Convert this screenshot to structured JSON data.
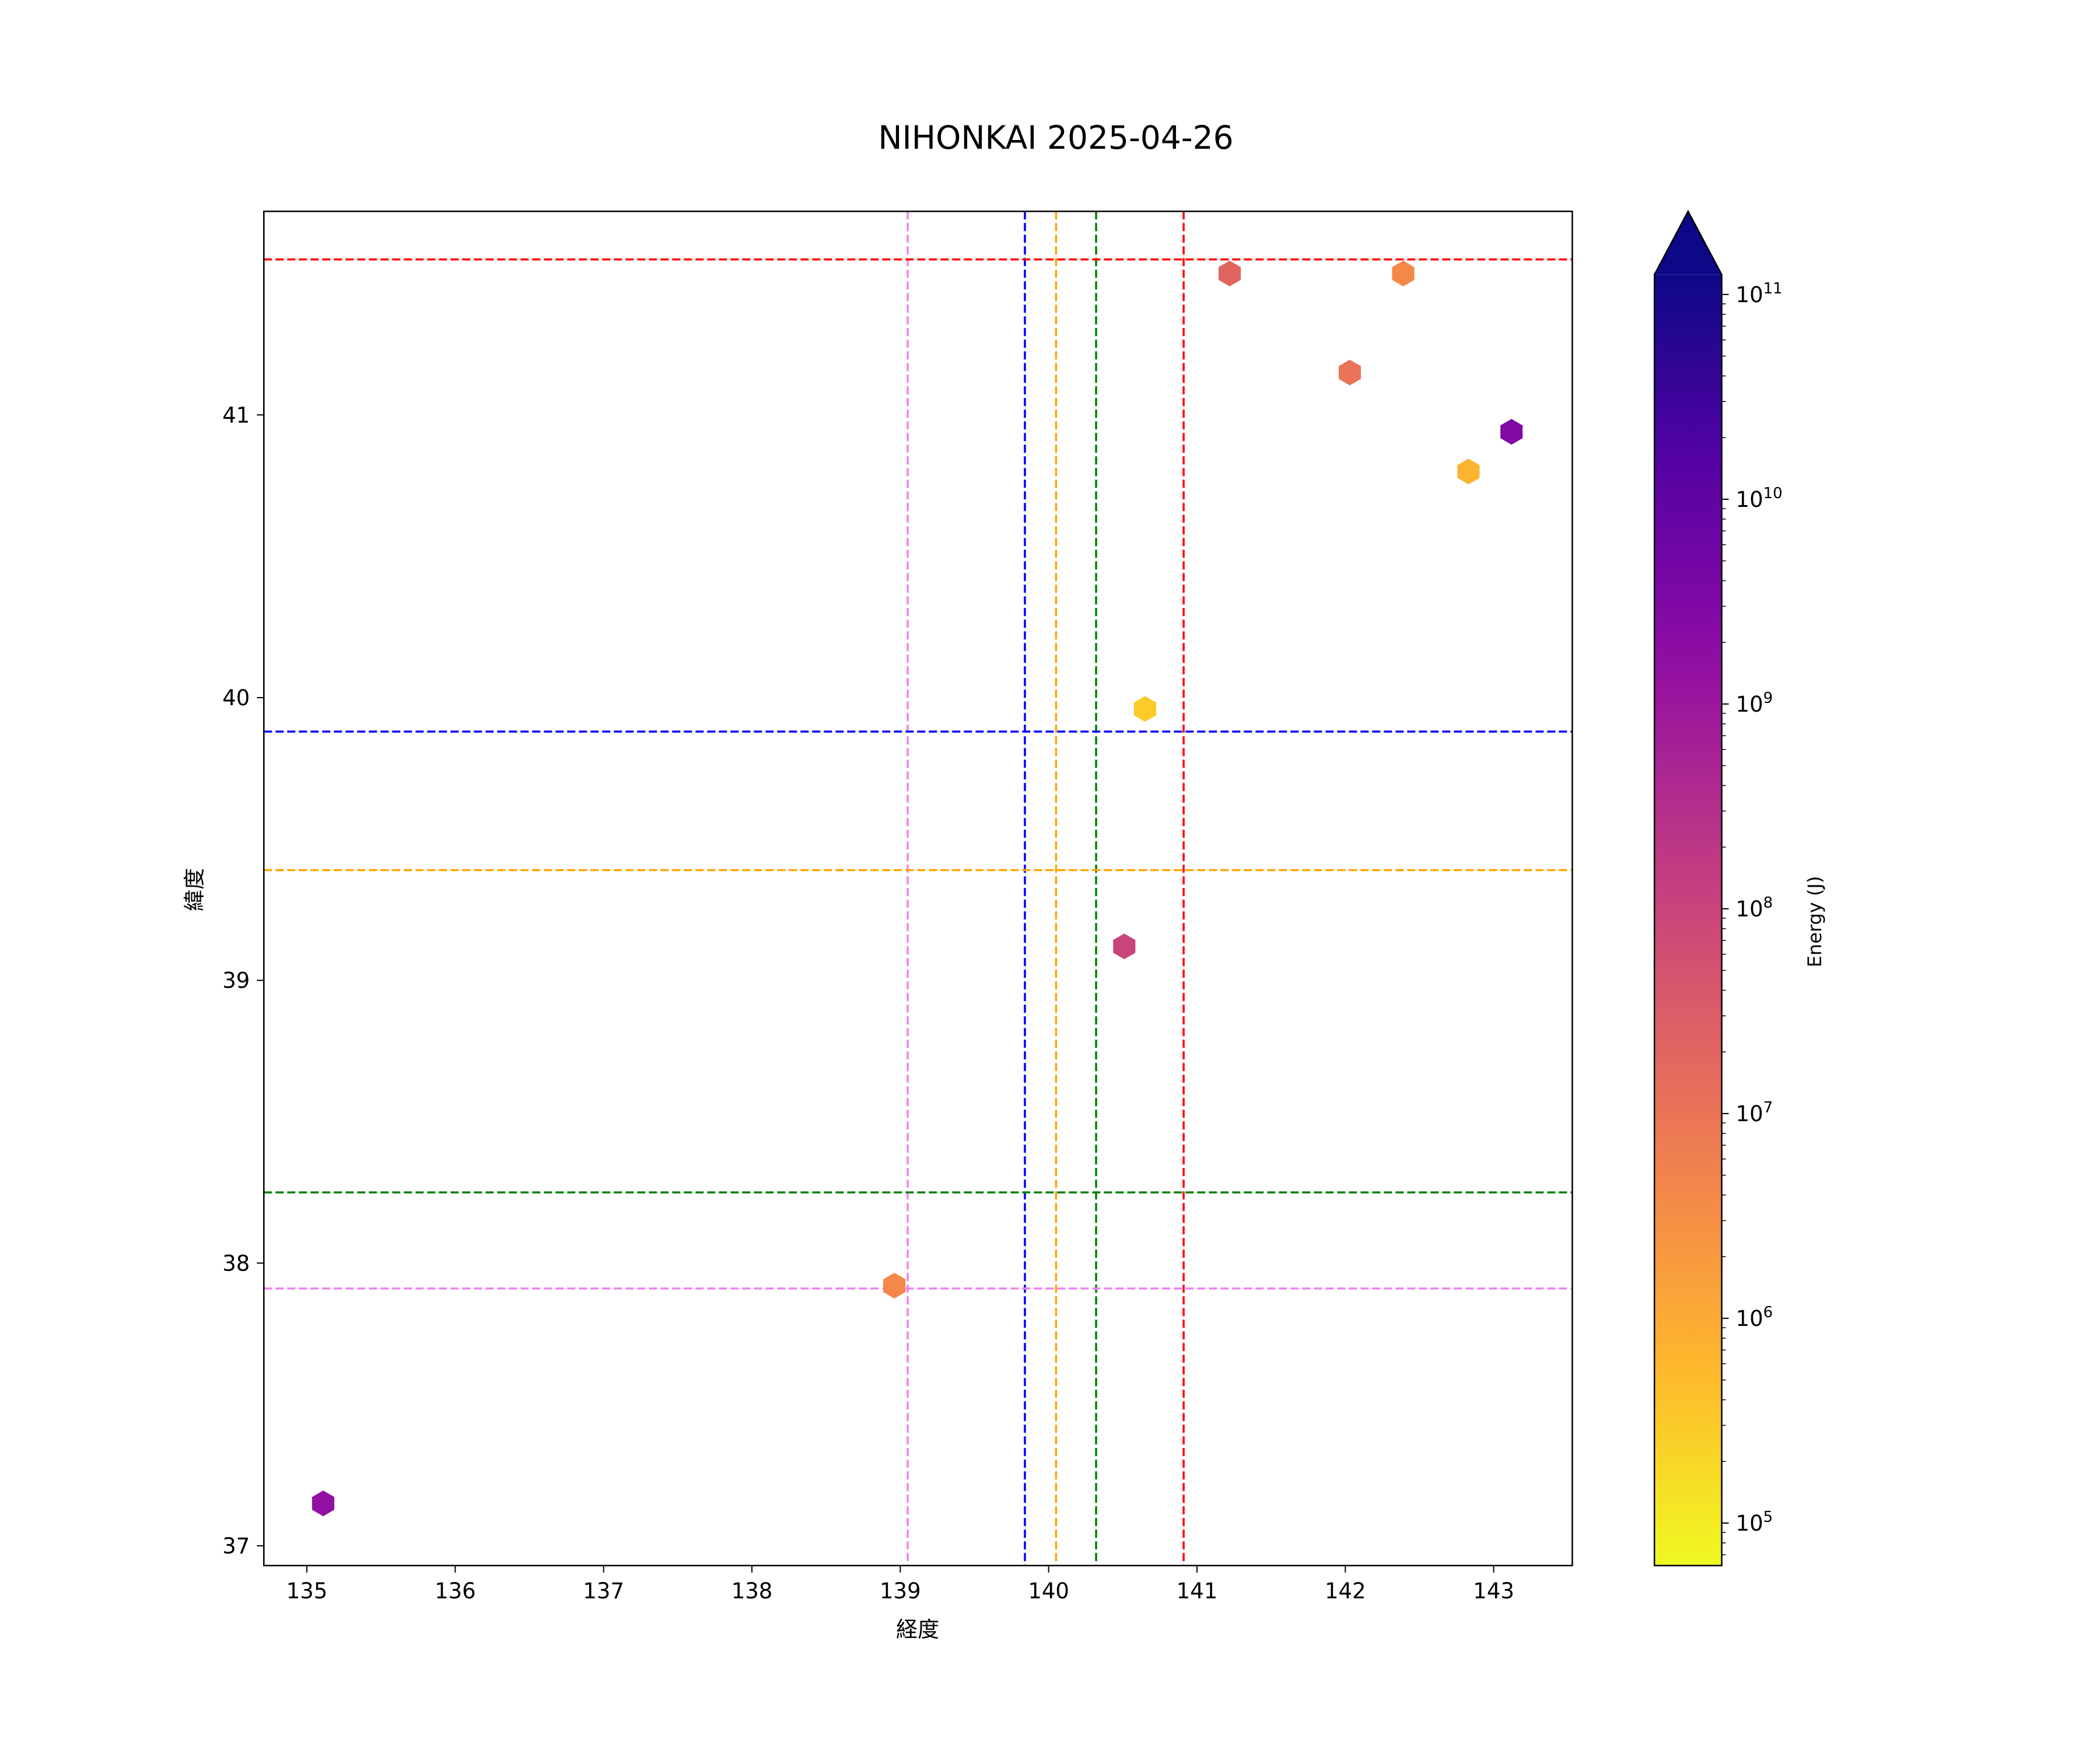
{
  "chart_data": {
    "type": "scatter",
    "title": "NIHONKAI 2025-04-26",
    "xlabel": "経度",
    "ylabel": "緯度",
    "xlim": [
      134.71,
      143.53
    ],
    "ylim": [
      36.93,
      41.72
    ],
    "xticks": [
      135,
      136,
      137,
      138,
      139,
      140,
      141,
      142,
      143
    ],
    "yticks": [
      37,
      38,
      39,
      40,
      41
    ],
    "grid": false,
    "marker": "hexagon",
    "points": [
      {
        "x": 135.11,
        "y": 37.15,
        "energy": 1500000000.0
      },
      {
        "x": 138.96,
        "y": 37.92,
        "energy": 4000000.0
      },
      {
        "x": 140.51,
        "y": 39.12,
        "energy": 100000000.0
      },
      {
        "x": 140.65,
        "y": 39.96,
        "energy": 300000.0
      },
      {
        "x": 141.22,
        "y": 41.5,
        "energy": 20000000.0
      },
      {
        "x": 142.03,
        "y": 41.15,
        "energy": 10000000.0
      },
      {
        "x": 142.39,
        "y": 41.5,
        "energy": 4000000.0
      },
      {
        "x": 142.83,
        "y": 40.8,
        "energy": 700000.0
      },
      {
        "x": 143.12,
        "y": 40.94,
        "energy": 3000000000.0
      }
    ],
    "vlines": [
      {
        "x": 139.05,
        "color": "#ee82ee"
      },
      {
        "x": 139.84,
        "color": "#0000ff"
      },
      {
        "x": 140.05,
        "color": "#ffa500"
      },
      {
        "x": 140.32,
        "color": "#008000"
      },
      {
        "x": 140.91,
        "color": "#ff0000"
      }
    ],
    "hlines": [
      {
        "y": 41.55,
        "color": "#ff0000"
      },
      {
        "y": 39.88,
        "color": "#0000ff"
      },
      {
        "y": 39.39,
        "color": "#ffa500"
      },
      {
        "y": 38.25,
        "color": "#008000"
      },
      {
        "y": 37.91,
        "color": "#ee82ee"
      }
    ],
    "colorbar": {
      "label": "Energy (J)",
      "colormap": "plasma_r",
      "scale": "log",
      "range": [
        62000.0,
        125000000000.0
      ],
      "extend": "max",
      "ticks": [
        5,
        6,
        7,
        8,
        9,
        10,
        11
      ],
      "tick_labels": [
        "10^5",
        "10^6",
        "10^7",
        "10^8",
        "10^9",
        "10^10",
        "10^11"
      ]
    }
  }
}
